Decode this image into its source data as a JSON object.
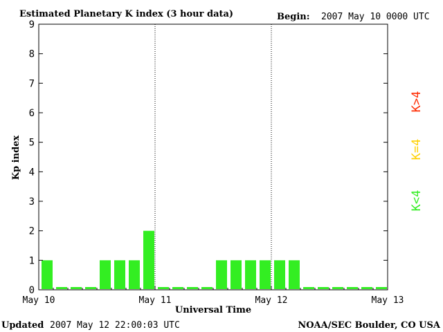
{
  "header": {
    "title": "Estimated Planetary K index (3 hour data)",
    "begin_label": "Begin:",
    "begin_value": "2007 May 10 0000 UTC"
  },
  "footer": {
    "updated_label": "Updated",
    "updated_value": "2007 May 12 22:00:03 UTC",
    "source": "NOAA/SEC Boulder, CO USA"
  },
  "legend": [
    {
      "label": "K>4",
      "color": "#ff2a00"
    },
    {
      "label": "K=4",
      "color": "#ffd000"
    },
    {
      "label": "K<4",
      "color": "#33ee22"
    }
  ],
  "colors": {
    "bar_below_4": "#33ee22",
    "bar_equal_4": "#ffd000",
    "bar_above_4": "#ff2a00",
    "axis": "#000000"
  },
  "chart_data": {
    "type": "bar",
    "title": "Estimated Planetary K index (3 hour data)",
    "xlabel": "Universal Time",
    "ylabel": "Kp index",
    "ylim": [
      0,
      9
    ],
    "yticks": [
      "0",
      "1",
      "2",
      "3",
      "4",
      "5",
      "6",
      "7",
      "8",
      "9"
    ],
    "xticks": [
      "May 10",
      "May 11",
      "May 12",
      "May 13"
    ],
    "day_separators": [
      "May 11",
      "May 12"
    ],
    "slots_per_day": 8,
    "values": [
      1,
      0,
      0,
      0,
      1,
      1,
      1,
      2,
      0,
      0,
      0,
      0,
      1,
      1,
      1,
      1,
      1,
      1,
      0,
      0,
      0,
      0,
      0,
      0
    ],
    "grid": false
  }
}
